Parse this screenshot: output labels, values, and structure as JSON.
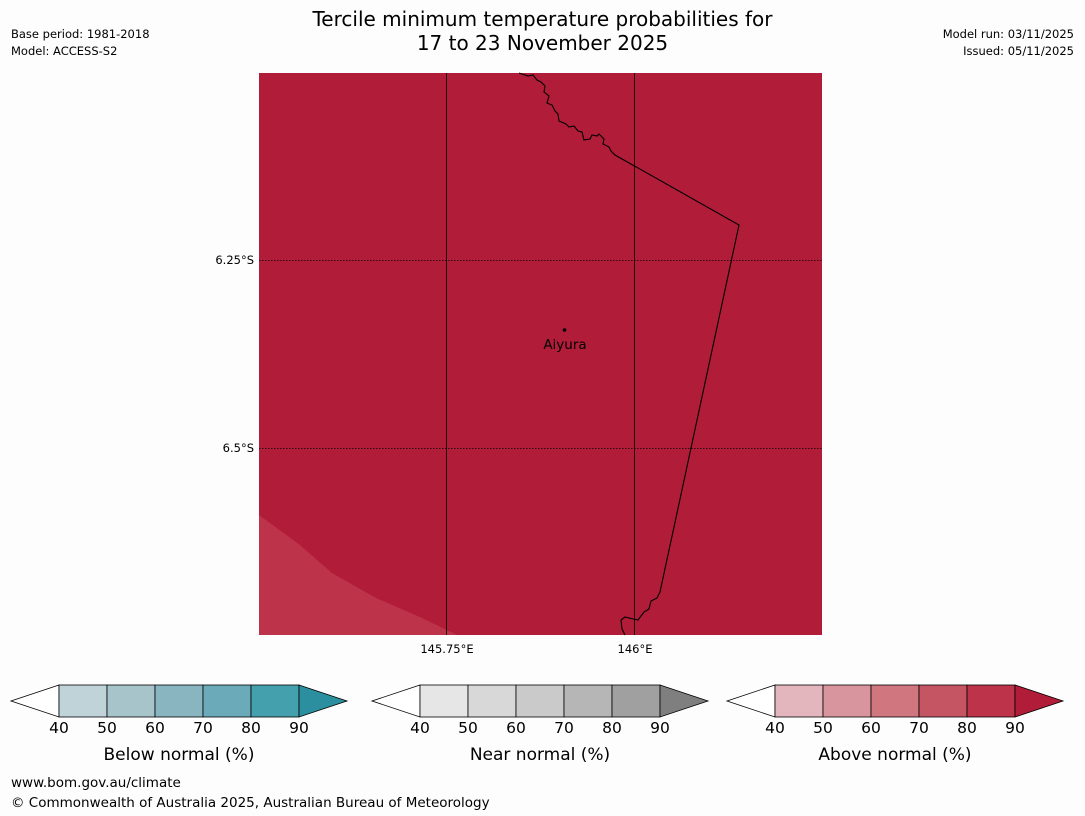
{
  "header": {
    "title_line1": "Tercile minimum temperature probabilities for",
    "title_line2": "17 to 23 November 2025",
    "base_period": "Base period: 1981-2018",
    "model": "Model: ACCESS-S2",
    "model_run": "Model run: 03/11/2025",
    "issued": "Issued: 05/11/2025"
  },
  "map": {
    "lat_labels": [
      "6.25°S",
      "6.5°S"
    ],
    "lon_labels": [
      "145.75°E",
      "146°E"
    ],
    "place": "Aiyura",
    "colors": {
      "dominant": "#b11c38",
      "lighter": "#bd3349"
    }
  },
  "legend": {
    "ticks": [
      "40",
      "50",
      "60",
      "70",
      "80",
      "90"
    ],
    "below": {
      "label": "Below normal (%)",
      "colors": [
        "#bfd3d8",
        "#a6c4c9",
        "#89b5c0",
        "#6aaab9",
        "#45a0ad",
        "#2b8f9f"
      ]
    },
    "near": {
      "label": "Near normal (%)",
      "colors": [
        "#e6e6e6",
        "#d8d8d8",
        "#cacaca",
        "#b6b6b6",
        "#a0a0a0",
        "#7f7f7f"
      ]
    },
    "above": {
      "label": "Above normal (%)",
      "colors": [
        "#e2b6bc",
        "#d8959d",
        "#cf767f",
        "#c65564",
        "#bd3349",
        "#b11c38"
      ]
    }
  },
  "footer": {
    "url": "www.bom.gov.au/climate",
    "copyright": "© Commonwealth of Australia 2025, Australian Bureau of Meteorology"
  }
}
